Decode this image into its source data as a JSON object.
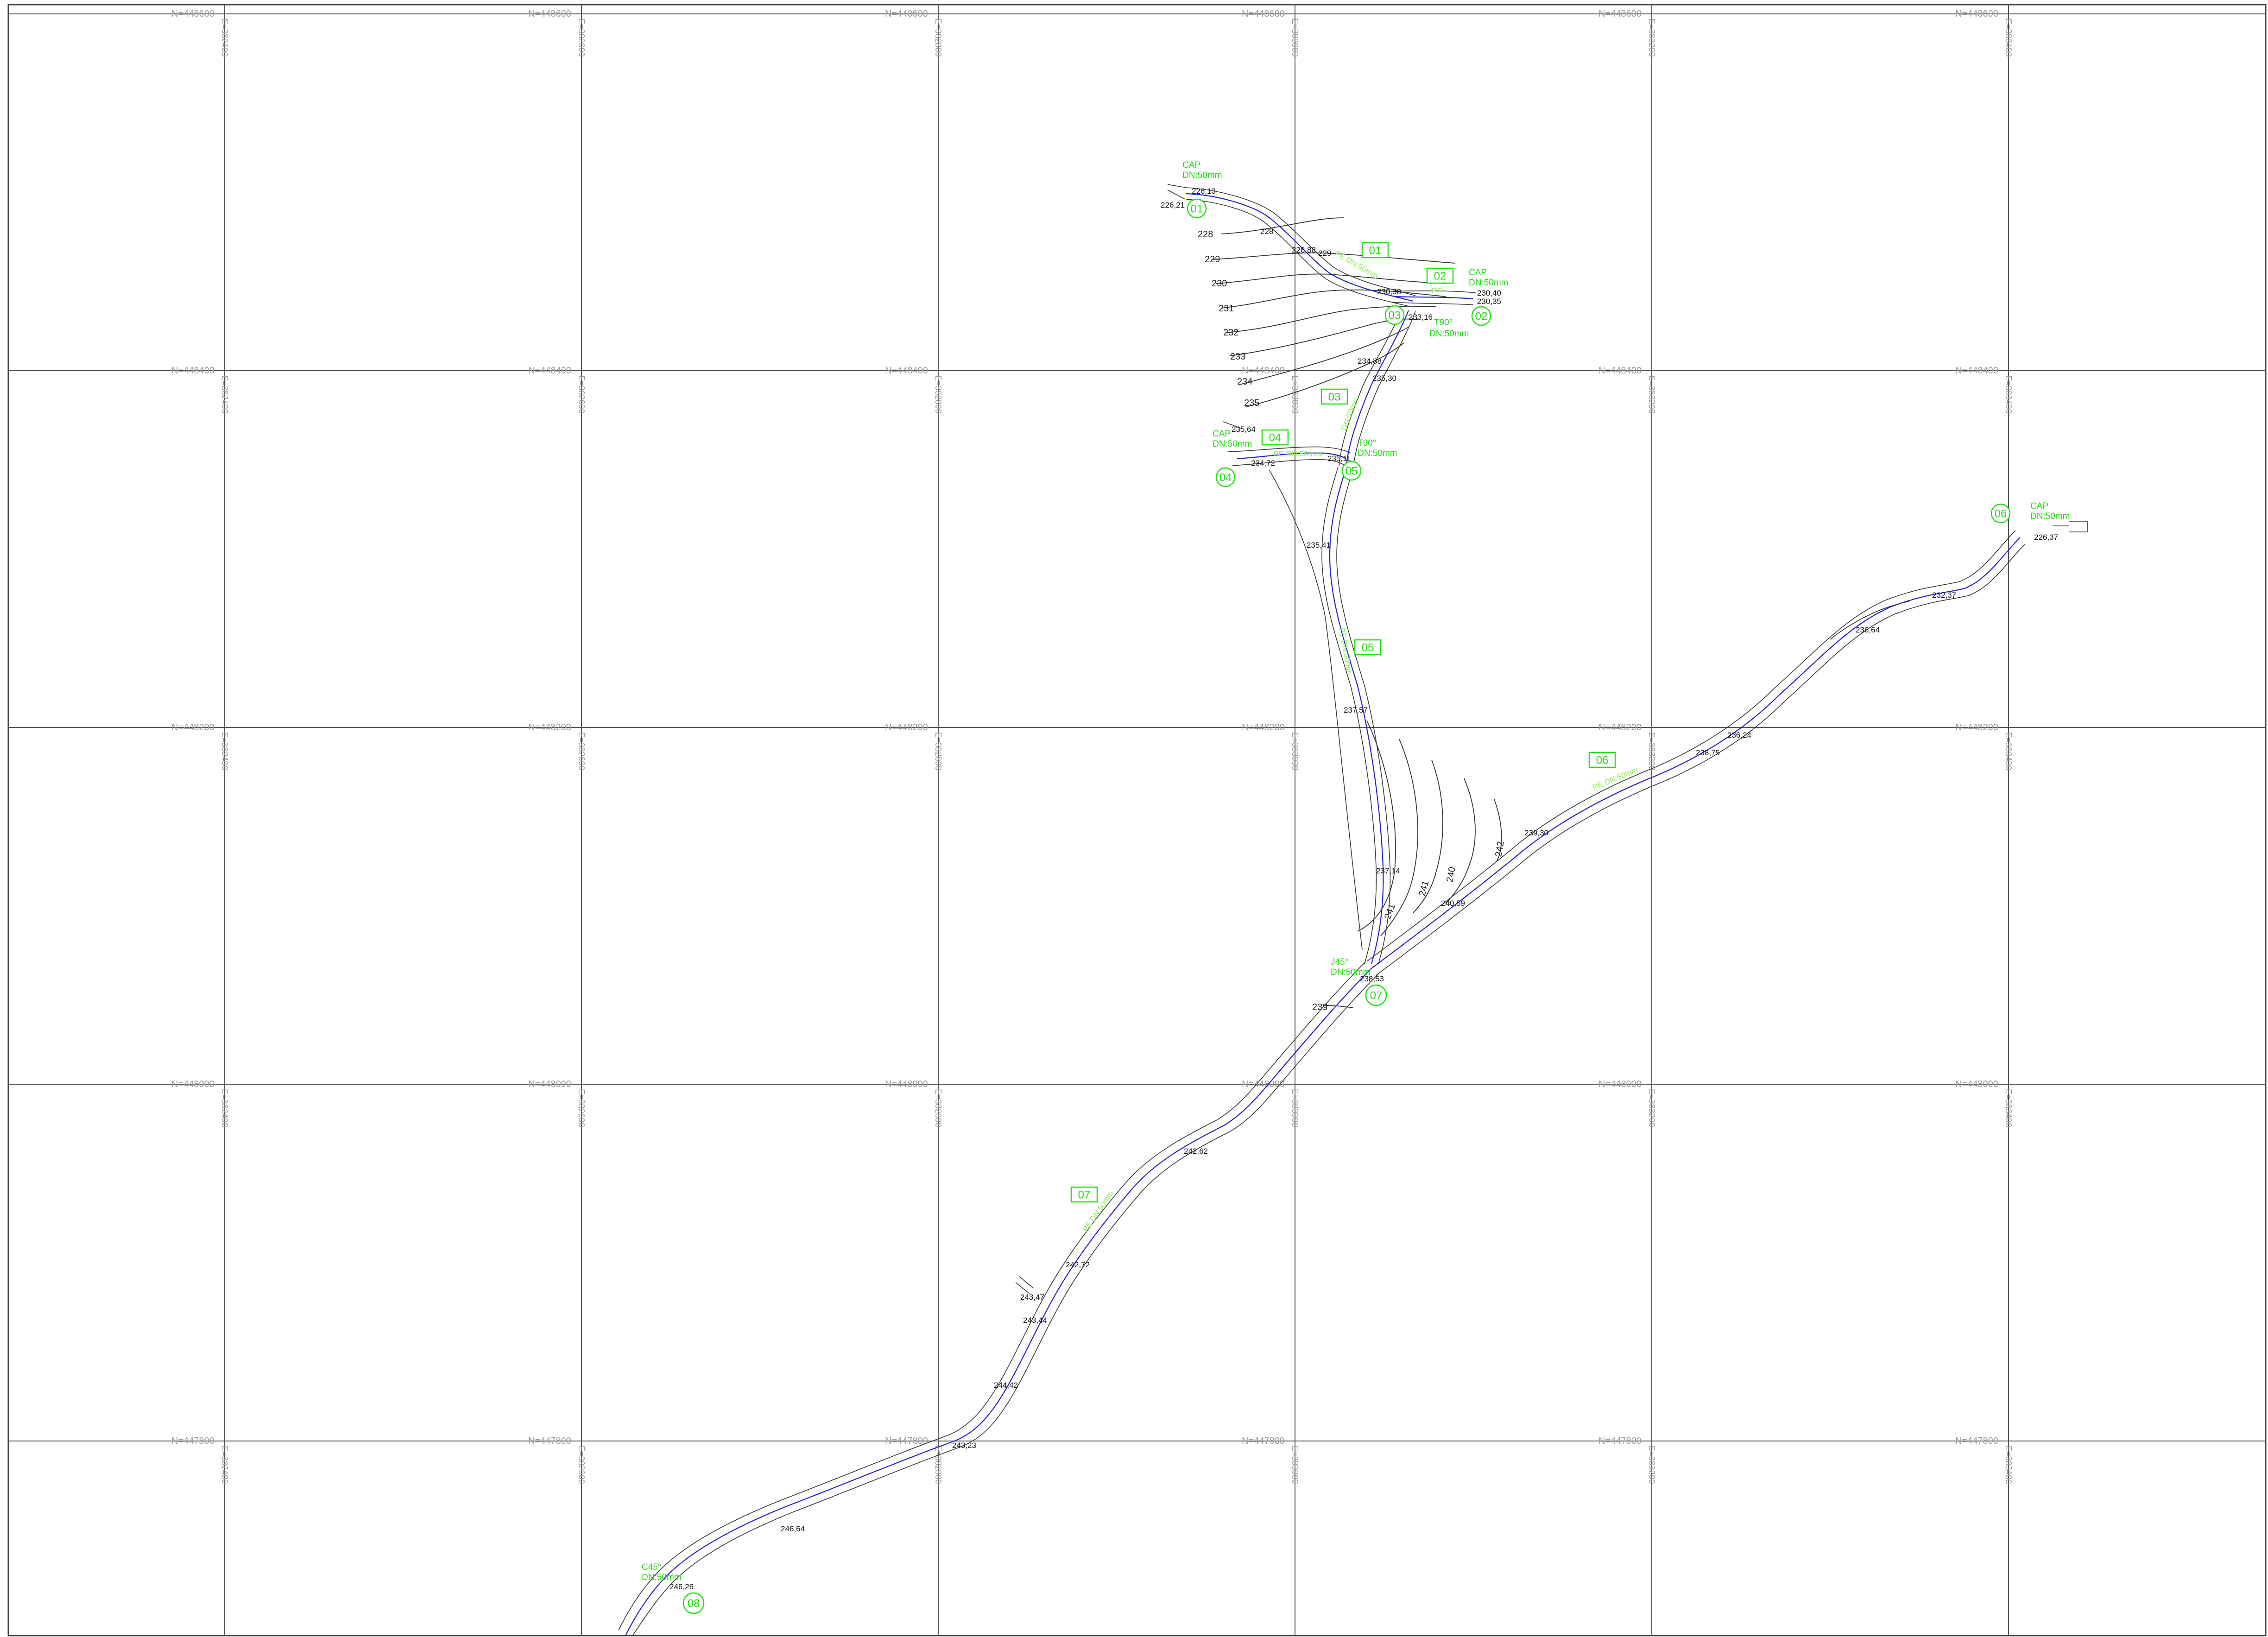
{
  "grid": {
    "northing_labels": [
      "N=448600",
      "N=448400",
      "N=448200",
      "N=448000",
      "N=447800"
    ],
    "easting_labels": [
      "E=382400",
      "E=382600",
      "E=382800",
      "E=383000",
      "E=383200",
      "E=383400"
    ]
  },
  "nodes": [
    {
      "id": "01",
      "label": "01",
      "note1": "CAP",
      "note2": "DN:50mm"
    },
    {
      "id": "02",
      "label": "02",
      "note1": "CAP",
      "note2": "DN:50mm"
    },
    {
      "id": "03",
      "label": "03",
      "note1": "T90°",
      "note2": "DN:50mm"
    },
    {
      "id": "04",
      "label": "04",
      "note1": "CAP",
      "note2": "DN:50mm"
    },
    {
      "id": "05",
      "label": "05",
      "note1": "T90°",
      "note2": "DN:50mm"
    },
    {
      "id": "06",
      "label": "06",
      "note1": "CAP",
      "note2": "DN:50mm"
    },
    {
      "id": "07",
      "label": "07",
      "note1": "J45°",
      "note2": "DN:50mm"
    },
    {
      "id": "08",
      "label": "08",
      "note1": "C45°",
      "note2": "DN:50mm"
    }
  ],
  "segments": [
    {
      "id": "01",
      "label": "01"
    },
    {
      "id": "02",
      "label": "02"
    },
    {
      "id": "03",
      "label": "03"
    },
    {
      "id": "04",
      "label": "04"
    },
    {
      "id": "05",
      "label": "05"
    },
    {
      "id": "06",
      "label": "06"
    },
    {
      "id": "07",
      "label": "07"
    }
  ],
  "pipe_notes": {
    "p01": "PE DN:50mm",
    "p02": "PE",
    "p03": "DN:50mm",
    "p04": "PE DN:50mm",
    "p05": "PE DN:50mm",
    "p06": "PE DN:50mm",
    "p07": "PE DN:50mm"
  },
  "contours": {
    "c228": "228",
    "c229": "229",
    "c230": "230",
    "c231": "231",
    "c232": "232",
    "c233": "233",
    "c234": "234",
    "c235": "235",
    "c239": "239",
    "c241a": "241",
    "c241b": "241",
    "c240": "240",
    "c242": "242"
  },
  "elevations": {
    "e1": "226,21",
    "e2": "226,13",
    "e3": "228",
    "e4": "228,88",
    "e5": "229",
    "e6": "230,38",
    "e7": "230,40",
    "e8": "230,35",
    "e9": "233,16",
    "e10": "234,88",
    "e11": "235,30",
    "e12": "235,64",
    "e13": "235,11",
    "e14": "234,72",
    "e15": "235,41",
    "e16": "237,57",
    "e17": "237,14",
    "e18": "240,59",
    "e19": "238,53",
    "e20": "239,30",
    "e21": "238,75",
    "e22": "236,24",
    "e23": "236,64",
    "e24": "232,37",
    "e25": "226,37",
    "e26": "242,62",
    "e27": "242,72",
    "e28": "243,47",
    "e29": "243,44",
    "e30": "244,42",
    "e31": "243,23",
    "e32": "246,64",
    "e33": "246,26"
  }
}
